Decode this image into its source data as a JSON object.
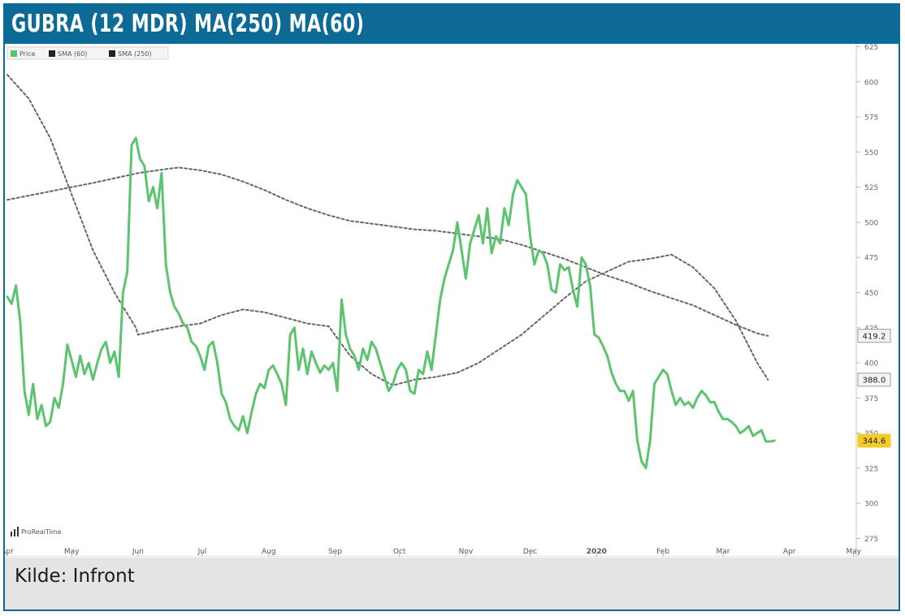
{
  "header": {
    "title": "GUBRA (12 MDR) MA(250) MA(60)"
  },
  "caption": {
    "text": "Kilde: Infront"
  },
  "watermark": {
    "text": "ProRealTime"
  },
  "colors": {
    "header_bg": "#0d6a96",
    "price": "#5cc46f",
    "sma": "#666666",
    "last_price_badge": "#f2cc2a"
  },
  "chart_data": {
    "type": "line",
    "legend": {
      "position": "top-left",
      "entries": [
        "Price",
        "SMA (60)",
        "SMA (250)"
      ]
    },
    "y_axis": {
      "position": "right",
      "range": [
        262,
        627
      ],
      "ticks": [
        275,
        300,
        325,
        350,
        375,
        400,
        425,
        450,
        475,
        500,
        525,
        550,
        575,
        600,
        625
      ],
      "tick_labels": [
        "275",
        "300",
        "325",
        "350",
        "375",
        "400",
        "425",
        "450",
        "475",
        "500",
        "525",
        "550",
        "575",
        "600",
        "625"
      ]
    },
    "x_axis": {
      "range": [
        0,
        378
      ],
      "ticks": [
        0,
        30,
        61,
        91,
        122,
        153,
        183,
        214,
        244,
        275,
        306,
        334,
        365
      ],
      "tick_labels": [
        "Apr",
        "May",
        "Jun",
        "Jul",
        "Aug",
        "Sep",
        "Oct",
        "Nov",
        "Dec",
        "2020",
        "Feb",
        "Mar",
        "Apr"
      ],
      "extra_tick": {
        "x": 395,
        "label": "May"
      }
    },
    "grid": false,
    "badges": [
      {
        "series": "SMA (250)",
        "label": "419.2",
        "value": 419.2
      },
      {
        "series": "SMA (60)",
        "label": "388.0",
        "value": 388.0
      },
      {
        "series": "Price",
        "label": "344.6",
        "value": 344.6
      }
    ],
    "series": [
      {
        "name": "Price",
        "style": "solid",
        "x": [
          0,
          2,
          4,
          6,
          8,
          10,
          12,
          14,
          16,
          18,
          20,
          22,
          24,
          26,
          28,
          30,
          32,
          34,
          36,
          38,
          40,
          42,
          44,
          46,
          48,
          50,
          52,
          54,
          56,
          58,
          60,
          61,
          62,
          64,
          66,
          68,
          70,
          72,
          74,
          76,
          78,
          80,
          82,
          84,
          86,
          88,
          90,
          92,
          94,
          96,
          98,
          100,
          102,
          104,
          106,
          108,
          110,
          112,
          114,
          116,
          118,
          120,
          122,
          124,
          126,
          128,
          130,
          132,
          134,
          136,
          138,
          140,
          142,
          144,
          146,
          148,
          150,
          152,
          154,
          156,
          158,
          160,
          162,
          164,
          166,
          168,
          170,
          172,
          174,
          176,
          178,
          180,
          182,
          184,
          186,
          188,
          190,
          192,
          194,
          196,
          198,
          200,
          202,
          204,
          206,
          208,
          210,
          212,
          214,
          216,
          218,
          220,
          222,
          224,
          226,
          228,
          230,
          232,
          234,
          236,
          238,
          240,
          242,
          244,
          246,
          248,
          250,
          252,
          254,
          256,
          258,
          260,
          262,
          264,
          266,
          268,
          270,
          272,
          274,
          276,
          278,
          280,
          282,
          284,
          286,
          288,
          290,
          292,
          294,
          296,
          298,
          300,
          302,
          304,
          306,
          308,
          310,
          312,
          314,
          316,
          318,
          320,
          322,
          324,
          326,
          328,
          330,
          332,
          334,
          336,
          338,
          340,
          342,
          344,
          346,
          348,
          350,
          352,
          354,
          356,
          358
        ],
        "y": [
          447,
          442,
          455,
          430,
          380,
          363,
          385,
          360,
          370,
          355,
          358,
          375,
          368,
          385,
          413,
          402,
          390,
          405,
          392,
          400,
          388,
          400,
          410,
          415,
          400,
          408,
          390,
          450,
          465,
          555,
          560,
          552,
          545,
          540,
          515,
          525,
          510,
          535,
          470,
          450,
          440,
          435,
          428,
          425,
          415,
          412,
          405,
          395,
          412,
          415,
          400,
          378,
          372,
          360,
          355,
          352,
          362,
          350,
          365,
          378,
          385,
          382,
          395,
          398,
          392,
          385,
          370,
          420,
          425,
          395,
          410,
          392,
          408,
          400,
          393,
          398,
          395,
          400,
          380,
          445,
          420,
          410,
          405,
          395,
          410,
          402,
          415,
          410,
          400,
          390,
          380,
          385,
          395,
          400,
          395,
          380,
          378,
          395,
          392,
          408,
          395,
          420,
          445,
          460,
          470,
          480,
          500,
          480,
          460,
          485,
          495,
          505,
          485,
          510,
          478,
          490,
          485,
          510,
          498,
          520,
          530,
          525,
          520,
          490,
          470,
          480,
          478,
          470,
          452,
          450,
          470,
          466,
          468,
          452,
          440,
          475,
          470,
          455,
          420,
          418,
          412,
          405,
          393,
          385,
          380,
          380,
          373,
          380,
          345,
          330,
          325,
          345,
          385,
          390,
          395,
          392,
          380,
          370,
          375,
          370,
          372,
          368,
          375,
          380,
          377,
          372,
          372,
          365,
          360,
          360,
          358,
          355,
          350,
          352,
          355,
          348,
          350,
          352,
          344,
          344,
          344.6
        ]
      },
      {
        "name": "SMA (60)",
        "style": "dotted",
        "x": [
          0,
          10,
          20,
          30,
          40,
          50,
          60,
          61,
          70,
          80,
          90,
          100,
          110,
          120,
          130,
          140,
          150,
          160,
          170,
          180,
          190,
          200,
          210,
          220,
          230,
          240,
          250,
          260,
          270,
          280,
          290,
          300,
          310,
          320,
          330,
          340,
          350,
          355
        ],
        "y": [
          605,
          588,
          560,
          520,
          480,
          450,
          425,
          420,
          423,
          426,
          428,
          434,
          438,
          436,
          432,
          428,
          426,
          405,
          392,
          384,
          388,
          390,
          393,
          400,
          410,
          420,
          433,
          446,
          458,
          465,
          472,
          474,
          477,
          468,
          453,
          430,
          400,
          388
        ]
      },
      {
        "name": "SMA (250)",
        "style": "dotted",
        "x": [
          0,
          20,
          40,
          61,
          70,
          80,
          90,
          100,
          110,
          120,
          130,
          140,
          150,
          160,
          170,
          180,
          190,
          200,
          210,
          220,
          230,
          240,
          250,
          260,
          270,
          280,
          290,
          300,
          310,
          320,
          330,
          340,
          350,
          355
        ],
        "y": [
          516,
          522,
          528,
          535,
          537,
          539,
          537,
          534,
          529,
          523,
          516,
          510,
          505,
          501,
          499,
          497,
          495,
          494,
          492,
          490,
          488,
          484,
          479,
          474,
          468,
          462,
          457,
          451,
          446,
          441,
          434,
          427,
          421,
          419.2
        ]
      }
    ]
  }
}
